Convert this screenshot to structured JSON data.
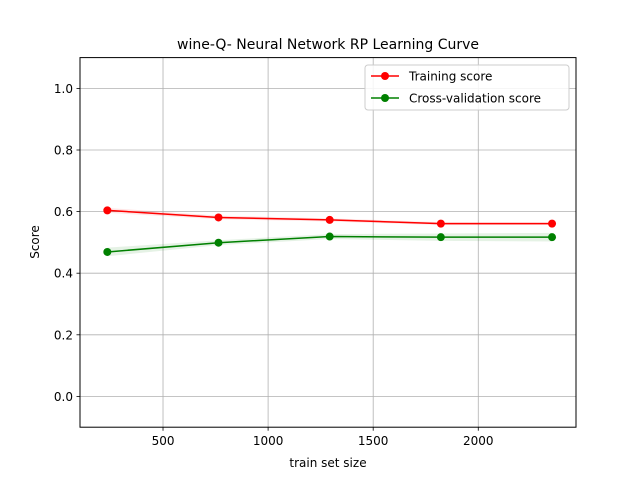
{
  "chart_data": {
    "type": "line",
    "title": "wine-Q- Neural Network RP Learning Curve",
    "xlabel": "train set size",
    "ylabel": "Score",
    "xlim": [
      105,
      2465
    ],
    "ylim": [
      -0.1,
      1.1
    ],
    "xticks": [
      500,
      1000,
      1500,
      2000
    ],
    "yticks": [
      0.0,
      0.2,
      0.4,
      0.6,
      0.8,
      1.0
    ],
    "xtick_labels": [
      "500",
      "1000",
      "1500",
      "2000"
    ],
    "ytick_labels": [
      "0.0",
      "0.2",
      "0.4",
      "0.6",
      "0.8",
      "1.0"
    ],
    "grid": true,
    "legend_position": "top-right",
    "x": [
      235,
      764,
      1293,
      1822,
      2351
    ],
    "series": [
      {
        "name": "Training score",
        "color": "#ff0000",
        "marker": "circle",
        "values": [
          0.604,
          0.581,
          0.573,
          0.561,
          0.561
        ],
        "band": [
          [
            0.596,
            0.612
          ],
          [
            0.575,
            0.587
          ],
          [
            0.568,
            0.578
          ],
          [
            0.556,
            0.566
          ],
          [
            0.557,
            0.565
          ]
        ]
      },
      {
        "name": "Cross-validation score",
        "color": "#008000",
        "marker": "circle",
        "values": [
          0.469,
          0.499,
          0.519,
          0.517,
          0.517
        ],
        "band": [
          [
            0.455,
            0.483
          ],
          [
            0.491,
            0.507
          ],
          [
            0.511,
            0.527
          ],
          [
            0.505,
            0.529
          ],
          [
            0.503,
            0.531
          ]
        ]
      }
    ]
  }
}
